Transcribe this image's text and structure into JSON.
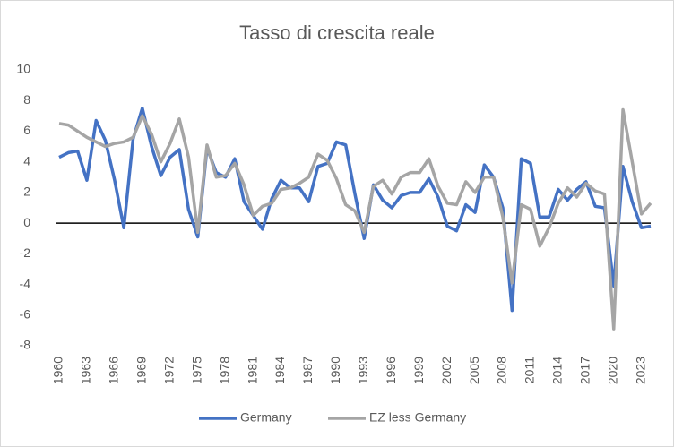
{
  "chart_data": {
    "type": "line",
    "title": "Tasso di crescita reale",
    "x": [
      1960,
      1961,
      1962,
      1963,
      1964,
      1965,
      1966,
      1967,
      1968,
      1969,
      1970,
      1971,
      1972,
      1973,
      1974,
      1975,
      1976,
      1977,
      1978,
      1979,
      1980,
      1981,
      1982,
      1983,
      1984,
      1985,
      1986,
      1987,
      1988,
      1989,
      1990,
      1991,
      1992,
      1993,
      1994,
      1995,
      1996,
      1997,
      1998,
      1999,
      2000,
      2001,
      2002,
      2003,
      2004,
      2005,
      2006,
      2007,
      2008,
      2009,
      2010,
      2011,
      2012,
      2013,
      2014,
      2015,
      2016,
      2017,
      2018,
      2019,
      2020,
      2021,
      2022,
      2023,
      2024
    ],
    "xlim": [
      1960,
      2024
    ],
    "xticks": [
      1960,
      1963,
      1966,
      1969,
      1972,
      1975,
      1978,
      1981,
      1984,
      1987,
      1990,
      1993,
      1996,
      1999,
      2002,
      2005,
      2008,
      2011,
      2014,
      2017,
      2020,
      2023
    ],
    "ylim": [
      -8,
      10
    ],
    "yticks": [
      10,
      8,
      6,
      4,
      2,
      0,
      -2,
      -4,
      -6,
      -8
    ],
    "grid": false,
    "legend": "bottom",
    "series": [
      {
        "name": "Germany",
        "color": "#4472c4",
        "values": [
          4.3,
          4.6,
          4.7,
          2.8,
          6.7,
          5.4,
          2.8,
          -0.3,
          5.5,
          7.5,
          5.0,
          3.1,
          4.3,
          4.8,
          0.9,
          -0.9,
          4.9,
          3.3,
          3.0,
          4.2,
          1.4,
          0.5,
          -0.4,
          1.6,
          2.8,
          2.3,
          2.3,
          1.4,
          3.7,
          3.9,
          5.3,
          5.1,
          1.9,
          -1.0,
          2.5,
          1.5,
          1.0,
          1.8,
          2.0,
          2.0,
          2.9,
          1.7,
          -0.2,
          -0.5,
          1.2,
          0.7,
          3.8,
          3.0,
          1.0,
          -5.7,
          4.2,
          3.9,
          0.4,
          0.4,
          2.2,
          1.5,
          2.2,
          2.7,
          1.1,
          1.0,
          -4.1,
          3.7,
          1.4,
          -0.3,
          -0.2
        ]
      },
      {
        "name": "EZ less Germany",
        "color": "#a5a5a5",
        "values": [
          6.5,
          6.4,
          6.0,
          5.6,
          5.3,
          5.0,
          5.2,
          5.3,
          5.6,
          7.0,
          5.8,
          4.0,
          5.2,
          6.8,
          4.3,
          -0.6,
          5.1,
          3.0,
          3.1,
          3.9,
          2.5,
          0.5,
          1.1,
          1.3,
          2.2,
          2.3,
          2.6,
          3.0,
          4.5,
          4.1,
          2.9,
          1.2,
          0.8,
          -0.6,
          2.4,
          2.8,
          1.9,
          3.0,
          3.3,
          3.3,
          4.2,
          2.4,
          1.3,
          1.2,
          2.7,
          2.0,
          3.0,
          3.0,
          0.4,
          -3.9,
          1.2,
          0.9,
          -1.5,
          -0.3,
          1.3,
          2.3,
          1.7,
          2.6,
          2.1,
          1.9,
          -6.9,
          7.4,
          4.0,
          0.6,
          1.3
        ]
      }
    ]
  }
}
